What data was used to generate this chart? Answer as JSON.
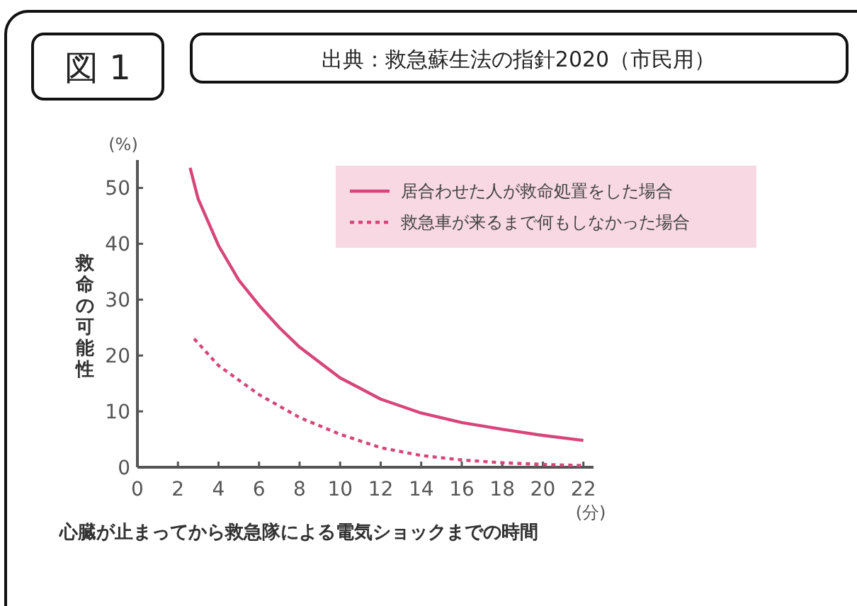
{
  "chart_data": {
    "type": "line",
    "title": "図 1",
    "subtitle": "出典：救急蘇生法の指針2020（市民用）",
    "xlabel": "心臓が止まってから救急隊による電気ショックまでの時間",
    "ylabel": "救命の可能性",
    "annotations": [
      "(%)",
      "(分)"
    ],
    "xlim": [
      0,
      22.5
    ],
    "ylim": [
      0,
      55
    ],
    "xticks": [
      0,
      2,
      4,
      6,
      8,
      10,
      12,
      14,
      16,
      18,
      20,
      22
    ],
    "yticks": [
      0,
      10,
      20,
      30,
      40,
      50
    ],
    "legend": "top right",
    "series": [
      {
        "name": "居合わせた人が救命処置をした場合",
        "color": "#d6467a",
        "line_style": "solid",
        "x": [
          2.6,
          3,
          4,
          5,
          6,
          7,
          8,
          10,
          12,
          14,
          16,
          18,
          20,
          22
        ],
        "values": [
          53.6,
          48,
          39.7,
          33.5,
          29,
          25,
          21.5,
          16,
          12.2,
          9.7,
          8,
          6.8,
          5.7,
          4.8
        ]
      },
      {
        "name": "救急車が来るまで何もしなかった場合",
        "color": "#d6467a",
        "line_style": "dotted",
        "x": [
          2.8,
          4,
          6,
          8,
          10,
          12,
          14,
          16,
          18,
          20,
          22
        ],
        "values": [
          23,
          18.2,
          13,
          8.9,
          5.9,
          3.5,
          2.1,
          1.3,
          0.8,
          0.5,
          0.3
        ]
      }
    ]
  }
}
